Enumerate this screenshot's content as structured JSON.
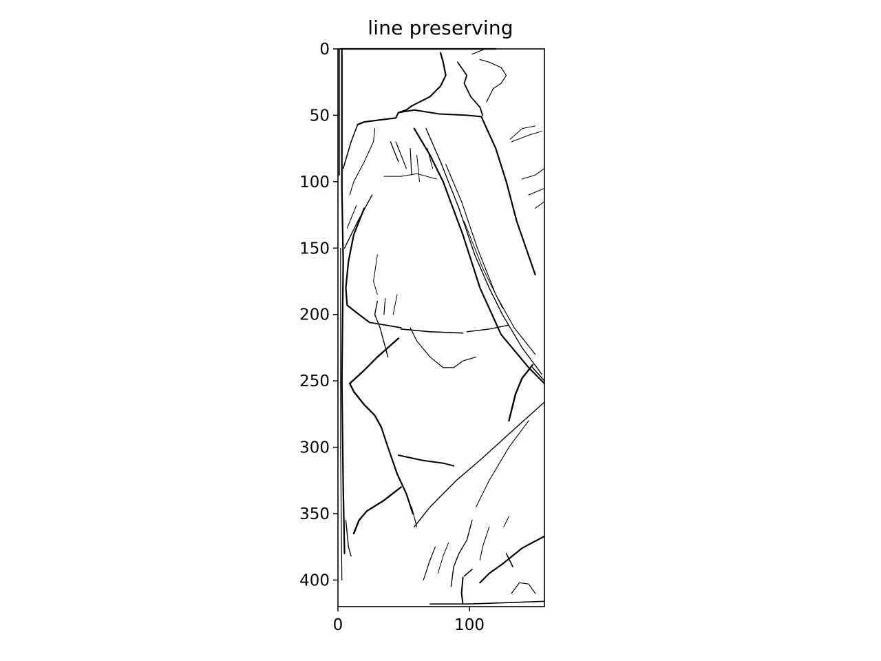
{
  "title": "line preserving",
  "chart_data": {
    "type": "image",
    "title": "line preserving",
    "xlim": [
      0,
      157
    ],
    "ylim": [
      420,
      0
    ],
    "x_ticks": [
      "0",
      "100"
    ],
    "y_ticks": [
      "0",
      "50",
      "100",
      "150",
      "200",
      "250",
      "300",
      "350",
      "400"
    ],
    "grid": false,
    "colormap": "binary",
    "x_tick_values": [
      0,
      100
    ],
    "y_tick_values": [
      0,
      50,
      100,
      150,
      200,
      250,
      300,
      350,
      400
    ]
  }
}
